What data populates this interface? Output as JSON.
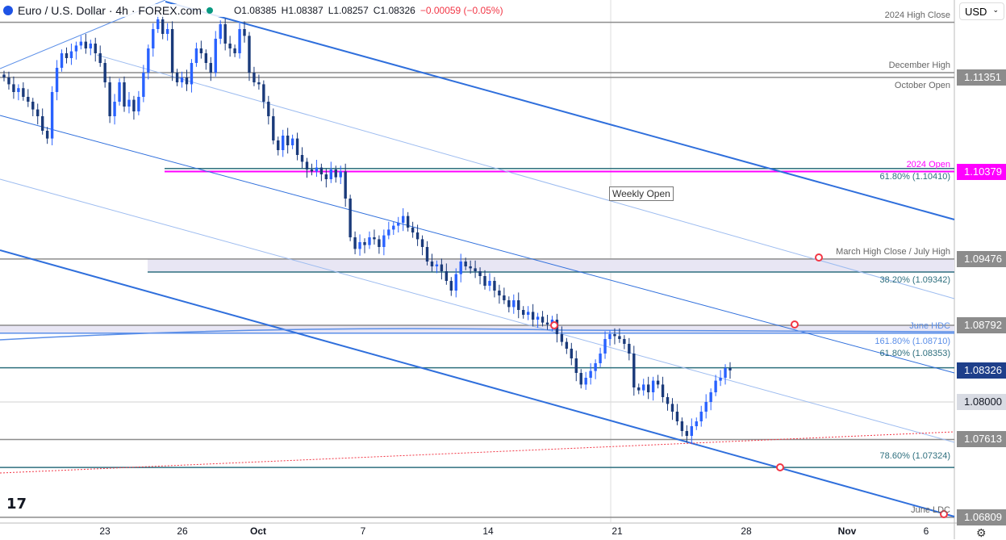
{
  "header": {
    "symbol": "Euro / U.S. Dollar · 4h · FOREX.com",
    "open": "O1.08385",
    "high": "H1.08387",
    "low": "L1.08257",
    "close": "C1.08326",
    "change": "−0.00059 (−0.05%)"
  },
  "currency": "USD",
  "colors": {
    "up": "#2962ff",
    "down": "#1a3a7a",
    "magenta": "#ff00ff",
    "teal": "#2e6f7e",
    "gray": "#8c8c8c",
    "last": "#1e3f8a"
  },
  "levels": [
    {
      "name": "2024 High Close",
      "price": 1.1192,
      "color": "#8c8c8c",
      "label": "2024 High Close"
    },
    {
      "name": "December High",
      "price": 1.114,
      "color": "#8c8c8c",
      "label": "December High"
    },
    {
      "name": "October Open",
      "price": 1.11351,
      "color": "#8c8c8c",
      "label": "October Open",
      "axis": "1.11351"
    },
    {
      "name": "fib-61.8-upper",
      "price": 1.1041,
      "color": "#2e6f7e",
      "label": "61.80% (1.10410)"
    },
    {
      "name": "2024 Open",
      "price": 1.10379,
      "color": "#ff00ff",
      "label": "2024 Open",
      "axis": "1.10379"
    },
    {
      "name": "March High Close / July High",
      "price": 1.09476,
      "color": "#8c8c8c",
      "label": "March High Close / July High",
      "axis": "1.09476"
    },
    {
      "name": "fib-38.2",
      "price": 1.09342,
      "color": "#2e6f7e",
      "label": "38.20% (1.09342)"
    },
    {
      "name": "upper-band",
      "price": 1.08792,
      "color": "#8c8c8c",
      "label": "",
      "axis": "1.08792"
    },
    {
      "name": "June HDC",
      "price": 1.0871,
      "color": "#5b8fe8",
      "label": "June HDC"
    },
    {
      "name": "fib-161.8",
      "price": 1.0871,
      "color": "#5b8fe8",
      "label": "161.80% (1.08710)"
    },
    {
      "name": "fib-61.8",
      "price": 1.08353,
      "color": "#2e6f7e",
      "label": "61.80% (1.08353)"
    },
    {
      "name": "last",
      "price": 1.08326,
      "color": "#2e6f7e",
      "label": "",
      "axis": "1.08326"
    },
    {
      "name": "1.08",
      "price": 1.08,
      "color": "#e0e0e0",
      "label": "",
      "axis": "1.08000"
    },
    {
      "name": "low",
      "price": 1.07613,
      "color": "#8c8c8c",
      "label": "",
      "axis": "1.07613"
    },
    {
      "name": "fib-78.6",
      "price": 1.07324,
      "color": "#2e6f7e",
      "label": "78.60% (1.07324)"
    },
    {
      "name": "June LDC",
      "price": 1.06809,
      "color": "#8c8c8c",
      "label": "June LDC",
      "axis": "1.06809"
    }
  ],
  "weekly_open": "Weekly Open",
  "chart_data": {
    "type": "candlestick",
    "timeframe": "4h",
    "yticks": [
      "1.11500",
      "1.11000",
      "1.10500",
      "1.10000",
      "1.09000",
      "1.08500",
      "1.07500",
      "1.07000"
    ],
    "xticks": [
      "23",
      "26",
      "Oct",
      "7",
      "14",
      "21",
      "28",
      "Nov",
      "6"
    ],
    "ylim": [
      1.0665,
      1.1215
    ],
    "closes": [
      1.1135,
      1.1128,
      1.112,
      1.1124,
      1.1115,
      1.111,
      1.1102,
      1.1095,
      1.108,
      1.1072,
      1.112,
      1.1145,
      1.116,
      1.1155,
      1.1162,
      1.1168,
      1.1172,
      1.1165,
      1.117,
      1.116,
      1.115,
      1.113,
      1.1095,
      1.111,
      1.113,
      1.1105,
      1.1112,
      1.11,
      1.1115,
      1.114,
      1.1165,
      1.1185,
      1.1195,
      1.118,
      1.1185,
      1.114,
      1.113,
      1.1135,
      1.1128,
      1.115,
      1.1165,
      1.116,
      1.115,
      1.114,
      1.1175,
      1.119,
      1.117,
      1.1165,
      1.116,
      1.1185,
      1.1178,
      1.114,
      1.113,
      1.1128,
      1.111,
      1.1095,
      1.107,
      1.106,
      1.1075,
      1.1065,
      1.1072,
      1.1055,
      1.1048,
      1.104,
      1.1038,
      1.1042,
      1.1035,
      1.103,
      1.104,
      1.1032,
      1.1038,
      1.101,
      1.097,
      1.0958,
      1.0965,
      1.0962,
      1.097,
      1.0968,
      1.096,
      1.0972,
      1.0978,
      1.0982,
      1.0985,
      1.0992,
      1.098,
      1.0975,
      1.0968,
      1.096,
      1.0945,
      1.094,
      1.0942,
      1.0935,
      1.0925,
      1.0915,
      1.0932,
      1.0945,
      1.094,
      1.0938,
      1.0935,
      1.093,
      1.092,
      1.0925,
      1.0915,
      1.091,
      1.0905,
      1.0898,
      1.0905,
      1.0895,
      1.089,
      1.0893,
      1.0885,
      1.0888,
      1.0882,
      1.088,
      1.0885,
      1.087,
      1.0862,
      1.0855,
      1.0845,
      1.083,
      1.0818,
      1.0825,
      1.0832,
      1.084,
      1.085,
      1.0865,
      1.087,
      1.0868,
      1.0865,
      1.086,
      1.085,
      1.0815,
      1.0812,
      1.0818,
      1.081,
      1.0822,
      1.0818,
      1.0805,
      1.0798,
      1.079,
      1.078,
      1.077,
      1.0765,
      1.0775,
      1.078,
      1.079,
      1.08,
      1.081,
      1.0822,
      1.0825,
      1.0835,
      1.08326
    ]
  }
}
